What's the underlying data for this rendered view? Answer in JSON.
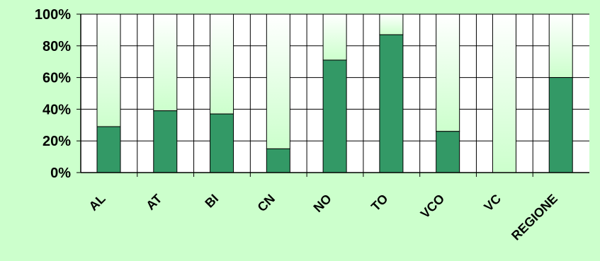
{
  "chart_data": {
    "type": "bar",
    "stacked": true,
    "percent_stacked": true,
    "categories": [
      "AL",
      "AT",
      "BI",
      "CN",
      "NO",
      "TO",
      "VCO",
      "VC",
      "REGIONE"
    ],
    "series": [
      {
        "values": [
          29,
          39,
          37,
          15,
          71,
          87,
          26,
          0,
          60
        ],
        "color": "#339966"
      },
      {
        "values": [
          71,
          61,
          63,
          85,
          29,
          13,
          74,
          100,
          40
        ],
        "color": "#ffffff"
      }
    ],
    "y_ticks": [
      "0%",
      "20%",
      "40%",
      "60%",
      "80%",
      "100%"
    ],
    "ylim": [
      0,
      100
    ],
    "grid": true,
    "legend": "none",
    "colors": {
      "background": "#ccffcc",
      "plot_area": "#ffffff",
      "bar_bottom": "#339966",
      "bar_top_light": "#ffffff",
      "bar_top_dark": "#ccffcc",
      "axis": "#000000"
    }
  }
}
